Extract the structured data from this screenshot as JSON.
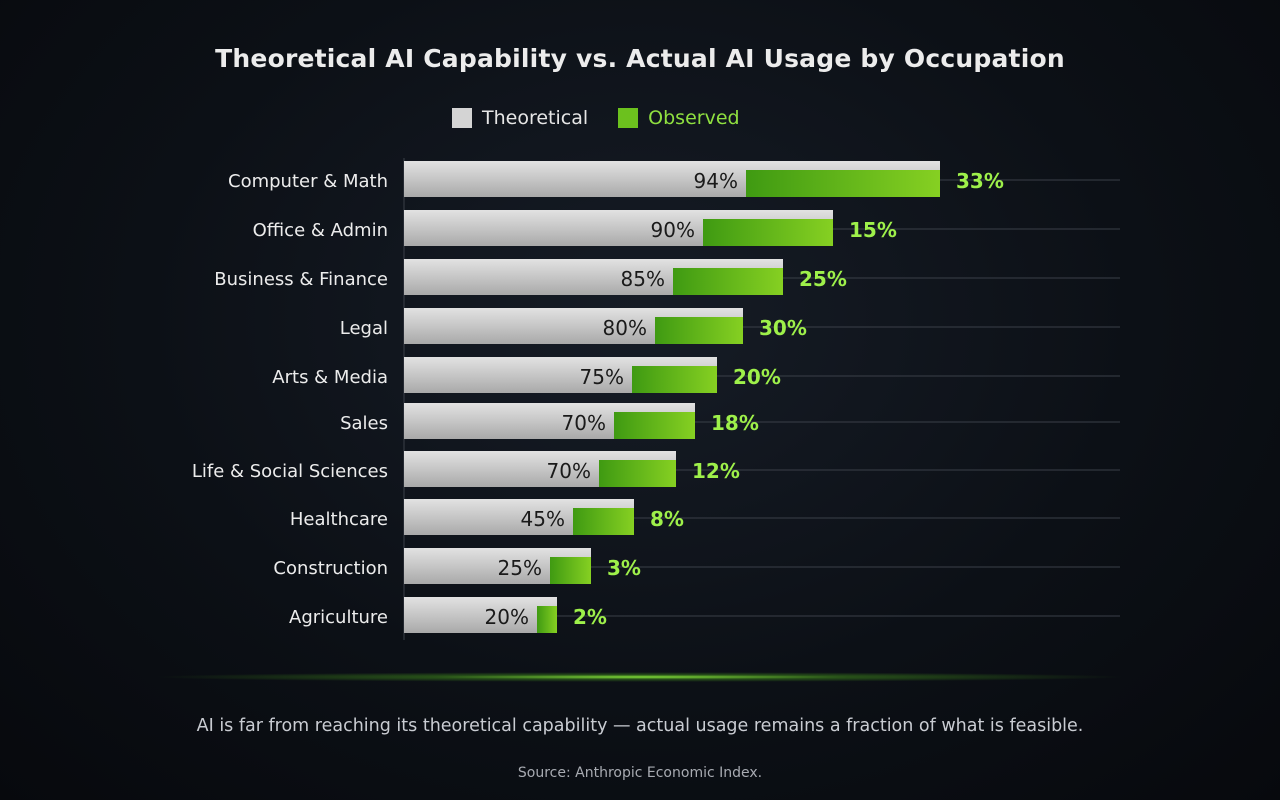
{
  "chart_data": {
    "type": "bar",
    "orientation": "horizontal",
    "title": "Theoretical AI Capability vs. Actual AI Usage by Occupation",
    "categories": [
      "Computer & Math",
      "Office & Admin",
      "Business & Finance",
      "Legal",
      "Arts & Media",
      "Sales",
      "Life & Social Sciences",
      "Healthcare",
      "Construction",
      "Agriculture"
    ],
    "series": [
      {
        "name": "Theoretical",
        "values": [
          94,
          90,
          85,
          80,
          75,
          70,
          70,
          45,
          25,
          20
        ],
        "color": "#c8c8c8"
      },
      {
        "name": "Observed",
        "values": [
          33,
          15,
          25,
          30,
          20,
          18,
          12,
          8,
          3,
          2
        ],
        "color": "#6cc11e"
      }
    ],
    "data_labels": {
      "theoretical": [
        "94%",
        "90%",
        "85%",
        "80%",
        "75%",
        "70%",
        "70%",
        "45%",
        "25%",
        "20%"
      ],
      "observed": [
        "33%",
        "15%",
        "25%",
        "30%",
        "20%",
        "18%",
        "12%",
        "8%",
        "3%",
        "2%"
      ]
    },
    "unit": "%",
    "legend_position": "top",
    "grid": true
  },
  "caption": "AI is far from reaching its theoretical capability — actual usage remains a fraction of what is feasible.",
  "source": "Source: Anthropic Economic Index.",
  "colors": {
    "observed_label": "#9ef04a",
    "background": "#0c1016"
  }
}
